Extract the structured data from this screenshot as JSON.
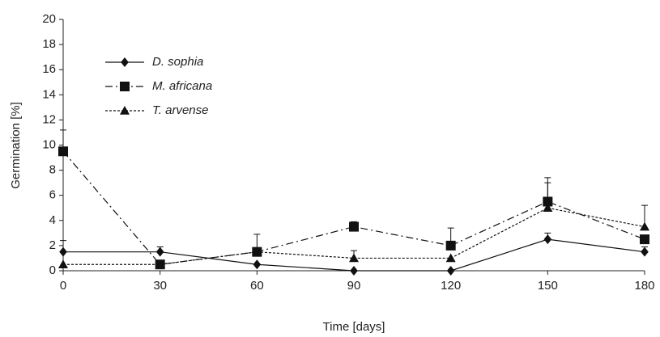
{
  "chart_data": {
    "type": "line",
    "x_label": "Time [days]",
    "y_label": "Germination [%]",
    "x": [
      0,
      30,
      60,
      90,
      120,
      150,
      180
    ],
    "xlim": [
      0,
      180
    ],
    "xticks": [
      0,
      30,
      60,
      90,
      120,
      150,
      180
    ],
    "ylim": [
      0,
      20
    ],
    "yticks": [
      0,
      2,
      4,
      6,
      8,
      10,
      12,
      14,
      16,
      18,
      20
    ],
    "grid": false,
    "legend": "upper left",
    "series": [
      {
        "name": "D. sophia",
        "color": "#111111",
        "marker": "diamond",
        "line_style": "solid",
        "values": [
          1.5,
          1.5,
          0.5,
          0,
          0,
          2.5,
          1.5
        ],
        "errors": [
          0.9,
          0.4,
          0,
          0,
          0,
          0.5,
          0.4
        ]
      },
      {
        "name": "M. africana",
        "color": "#111111",
        "marker": "square",
        "line_style": "dashdot",
        "values": [
          9.5,
          0.5,
          1.5,
          3.5,
          2,
          5.5,
          2.5
        ],
        "errors": [
          1.7,
          0.3,
          1.4,
          0.4,
          1.4,
          1.9,
          0
        ]
      },
      {
        "name": "T. arvense",
        "color": "#111111",
        "marker": "triangle",
        "line_style": "dotted",
        "values": [
          0.5,
          0.5,
          1.5,
          1,
          1,
          5,
          3.5
        ],
        "errors": [
          0,
          0.3,
          0,
          0.6,
          0,
          2,
          1.7
        ]
      }
    ]
  }
}
